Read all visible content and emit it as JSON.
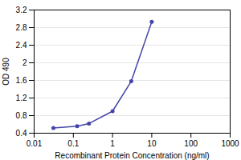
{
  "chart_data": {
    "type": "line",
    "x": [
      0.031,
      0.125,
      0.25,
      1.0,
      3.0,
      10.0
    ],
    "values": [
      0.52,
      0.56,
      0.62,
      0.9,
      1.58,
      2.93
    ],
    "xlabel": "Recombinant Protein Concentration (ng/ml)",
    "ylabel": "OD 490",
    "xlim": [
      0.01,
      1000
    ],
    "ylim": [
      0.4,
      3.2
    ],
    "xticks": [
      0.01,
      0.1,
      1,
      10,
      100,
      1000
    ],
    "yticks": [
      0.4,
      0.8,
      1.2,
      1.6,
      2,
      2.4,
      2.8,
      3.2
    ],
    "log": "x",
    "grid": "y",
    "color": "#4444aa",
    "marker": "circle"
  }
}
